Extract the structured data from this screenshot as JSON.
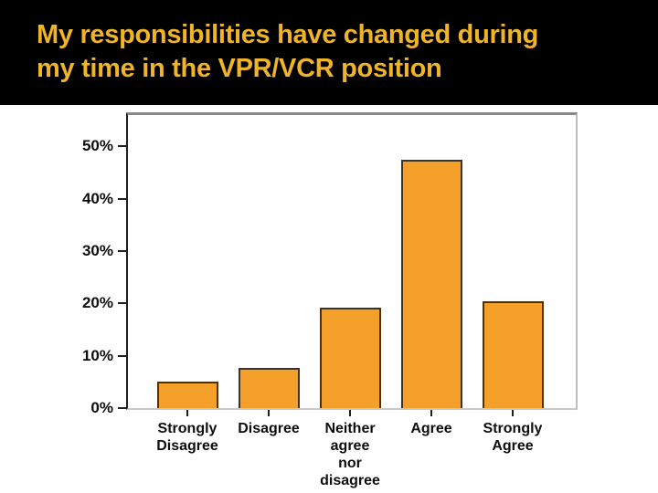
{
  "slide": {
    "title_line1": "My responsibilities have changed during",
    "title_line2": "my time in the VPR/VCR position",
    "title_color": "#F0B429",
    "band_color": "#000000",
    "background_color": "#FFFFFF"
  },
  "chart_data": {
    "type": "bar",
    "title": "",
    "xlabel": "",
    "ylabel": "",
    "categories": [
      "Strongly Disagree",
      "Disagree",
      "Neither agree nor disagree",
      "Agree",
      "Strongly Agree"
    ],
    "category_lines": [
      [
        "Strongly",
        "Disagree"
      ],
      [
        "Disagree"
      ],
      [
        "Neither",
        "agree",
        "nor",
        "disagree"
      ],
      [
        "Agree"
      ],
      [
        "Strongly",
        "Agree"
      ]
    ],
    "values": [
      5.1,
      7.7,
      19.2,
      47.4,
      20.5
    ],
    "unit": "%",
    "y_tick_labels": [
      "0%",
      "10%",
      "20%",
      "30%",
      "40%",
      "50%"
    ],
    "y_tick_values": [
      0,
      10,
      20,
      30,
      40,
      50
    ],
    "ylim": [
      0,
      56
    ],
    "grid": false,
    "legend": null,
    "bar_color": "#F5A02A",
    "bar_border_color": "#463214",
    "axis_text_color": "#0D0D0D"
  }
}
